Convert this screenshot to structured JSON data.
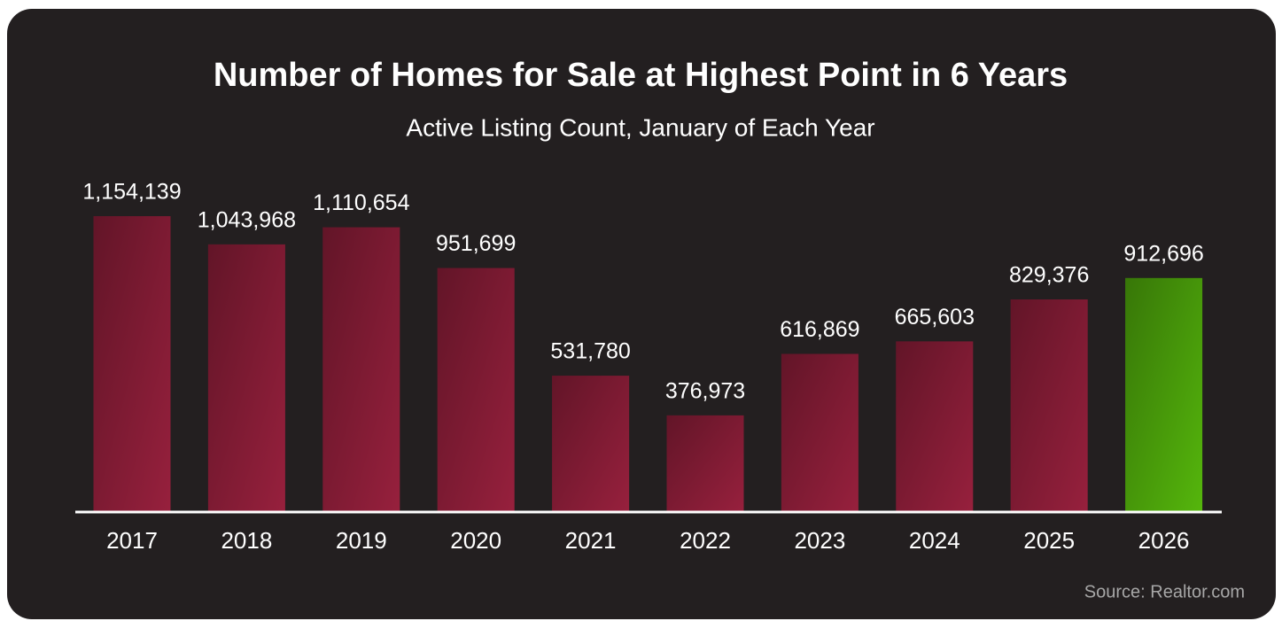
{
  "chart_data": {
    "type": "bar",
    "title": "Number of Homes for Sale at Highest Point in 6 Years",
    "subtitle": "Active Listing Count, January of Each Year",
    "source": "Source: Realtor.com",
    "categories": [
      "2017",
      "2018",
      "2019",
      "2020",
      "2021",
      "2022",
      "2023",
      "2024",
      "2025",
      "2026"
    ],
    "values": [
      1154139,
      1043968,
      1110654,
      951699,
      531780,
      376973,
      616869,
      665603,
      829376,
      912696
    ],
    "value_labels": [
      "1,154,139",
      "1,043,968",
      "1,110,654",
      "951,699",
      "531,780",
      "376,973",
      "616,869",
      "665,603",
      "829,376",
      "912,696"
    ],
    "colors": [
      "#97203d",
      "#97203d",
      "#97203d",
      "#97203d",
      "#97203d",
      "#97203d",
      "#97203d",
      "#97203d",
      "#97203d",
      "#55b60c"
    ]
  }
}
